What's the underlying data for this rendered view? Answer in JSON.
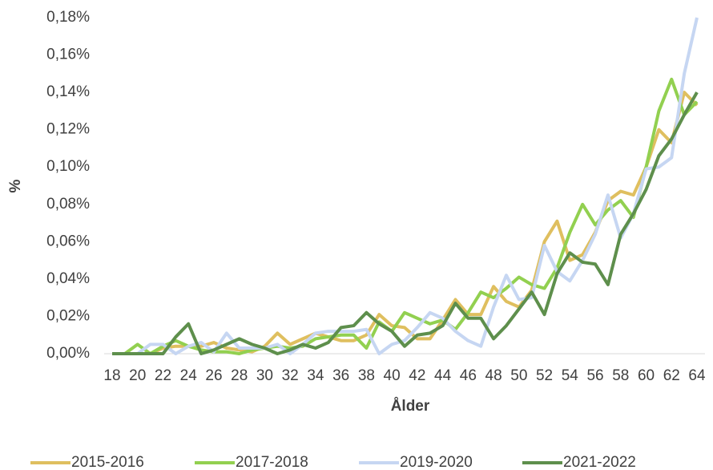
{
  "chart_data": {
    "type": "line",
    "x_label": "Ålder",
    "y_label": "%",
    "x": [
      18,
      19,
      20,
      21,
      22,
      23,
      24,
      25,
      26,
      27,
      28,
      29,
      30,
      31,
      32,
      33,
      34,
      35,
      36,
      37,
      38,
      39,
      40,
      41,
      42,
      43,
      44,
      45,
      46,
      47,
      48,
      49,
      50,
      51,
      52,
      53,
      54,
      55,
      56,
      57,
      58,
      59,
      60,
      61,
      62,
      63,
      64
    ],
    "xlim": [
      18,
      64
    ],
    "xticks": [
      18,
      20,
      22,
      24,
      26,
      28,
      30,
      32,
      34,
      36,
      38,
      40,
      42,
      44,
      46,
      48,
      50,
      52,
      54,
      56,
      58,
      60,
      62,
      64
    ],
    "ylim": [
      0,
      0.18
    ],
    "yticks": [
      {
        "value": 0,
        "label": "0,00%"
      },
      {
        "value": 0.02,
        "label": "0,02%"
      },
      {
        "value": 0.04,
        "label": "0,04%"
      },
      {
        "value": 0.06,
        "label": "0,06%"
      },
      {
        "value": 0.08,
        "label": "0,08%"
      },
      {
        "value": 0.1,
        "label": "0,10%"
      },
      {
        "value": 0.12,
        "label": "0,12%"
      },
      {
        "value": 0.14,
        "label": "0,14%"
      },
      {
        "value": 0.16,
        "label": "0,16%"
      },
      {
        "value": 0.18,
        "label": "0,18%"
      }
    ],
    "grid": false,
    "legend": "bottom",
    "series": [
      {
        "name": "2015-2016",
        "color": "#dfbf5f",
        "values": [
          0,
          0,
          0,
          0,
          0.003,
          0.004,
          0.004,
          0.004,
          0.006,
          0.003,
          0.002,
          0.001,
          0.004,
          0.011,
          0.005,
          0.008,
          0.011,
          0.009,
          0.007,
          0.007,
          0.01,
          0.021,
          0.015,
          0.014,
          0.008,
          0.008,
          0.018,
          0.029,
          0.021,
          0.021,
          0.036,
          0.028,
          0.025,
          0.034,
          0.06,
          0.071,
          0.05,
          0.053,
          0.065,
          0.082,
          0.087,
          0.085,
          0.1,
          0.12,
          0.113,
          0.14,
          0.133
        ]
      },
      {
        "name": "2017-2018",
        "color": "#92d050",
        "values": [
          0,
          0,
          0.005,
          0,
          0.004,
          0.007,
          0.004,
          0.002,
          0.001,
          0.001,
          0,
          0.002,
          0.003,
          0.004,
          0.003,
          0.004,
          0.008,
          0.009,
          0.01,
          0.01,
          0.003,
          0.017,
          0.012,
          0.022,
          0.019,
          0.016,
          0.018,
          0.013,
          0.022,
          0.033,
          0.03,
          0.035,
          0.041,
          0.037,
          0.035,
          0.046,
          0.065,
          0.08,
          0.069,
          0.077,
          0.082,
          0.073,
          0.1,
          0.13,
          0.147,
          0.128,
          0.135
        ]
      },
      {
        "name": "2019-2020",
        "color": "#c6d6f2",
        "values": [
          0,
          0,
          0,
          0.005,
          0.005,
          0,
          0.004,
          0.006,
          0.001,
          0.011,
          0.003,
          0.003,
          0.003,
          0.005,
          0,
          0.005,
          0.011,
          0.012,
          0.012,
          0.012,
          0.013,
          0,
          0.005,
          0.007,
          0.014,
          0.022,
          0.019,
          0.012,
          0.007,
          0.004,
          0.025,
          0.042,
          0.029,
          0.03,
          0.058,
          0.044,
          0.039,
          0.05,
          0.064,
          0.085,
          0.062,
          0.075,
          0.099,
          0.1,
          0.105,
          0.15,
          0.18
        ]
      },
      {
        "name": "2021-2022",
        "color": "#5e8f4c",
        "values": [
          0,
          0,
          0,
          0,
          0,
          0.009,
          0.016,
          0,
          0.002,
          0.005,
          0.008,
          0.005,
          0.003,
          0,
          0.002,
          0.005,
          0.003,
          0.006,
          0.014,
          0.015,
          0.022,
          0.016,
          0.012,
          0.004,
          0.01,
          0.011,
          0.015,
          0.027,
          0.019,
          0.019,
          0.008,
          0.015,
          0.024,
          0.033,
          0.021,
          0.043,
          0.054,
          0.049,
          0.048,
          0.037,
          0.064,
          0.075,
          0.088,
          0.106,
          0.115,
          0.128,
          0.14
        ]
      }
    ]
  }
}
